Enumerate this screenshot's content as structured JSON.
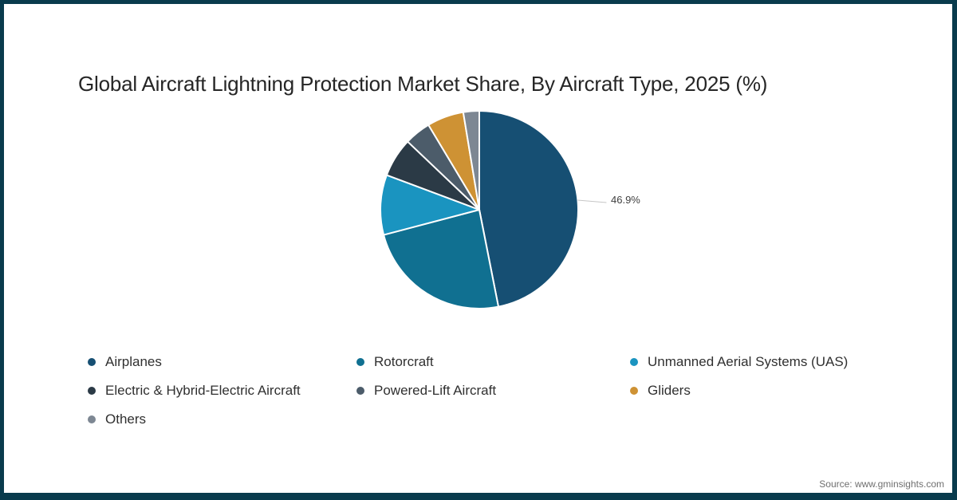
{
  "page": {
    "title": "Global Aircraft Lightning Protection Market Share, By Aircraft Type, 2025 (%)",
    "source": "Source: www.gminsights.com",
    "frame_color": "#093B4D",
    "background_color": "#ffffff"
  },
  "chart_data": {
    "type": "pie",
    "title": "Global Aircraft Lightning Protection Market Share, By Aircraft Type, 2025 (%)",
    "total": 100,
    "start_angle_deg": 0,
    "clockwise": true,
    "legend_position": "bottom",
    "slice_border_color": "#ffffff",
    "callout_line_color": "#C6C6C6",
    "series": [
      {
        "label": "Airplanes",
        "value": 46.9,
        "color": "#164F73"
      },
      {
        "label": "Rotorcraft",
        "value": 24.0,
        "color": "#107091"
      },
      {
        "label": "Unmanned Aerial Systems (UAS)",
        "value": 9.8,
        "color": "#1A94C0"
      },
      {
        "label": "Electric & Hybrid-Electric Aircraft",
        "value": 6.4,
        "color": "#2B3A46"
      },
      {
        "label": "Powered-Lift Aircraft",
        "value": 4.3,
        "color": "#4C5C6A"
      },
      {
        "label": "Gliders",
        "value": 6.0,
        "color": "#CE9234"
      },
      {
        "label": "Others",
        "value": 2.6,
        "color": "#7D8793"
      }
    ],
    "labeled_slice": {
      "label": "Airplanes",
      "text": "46.9%"
    }
  }
}
